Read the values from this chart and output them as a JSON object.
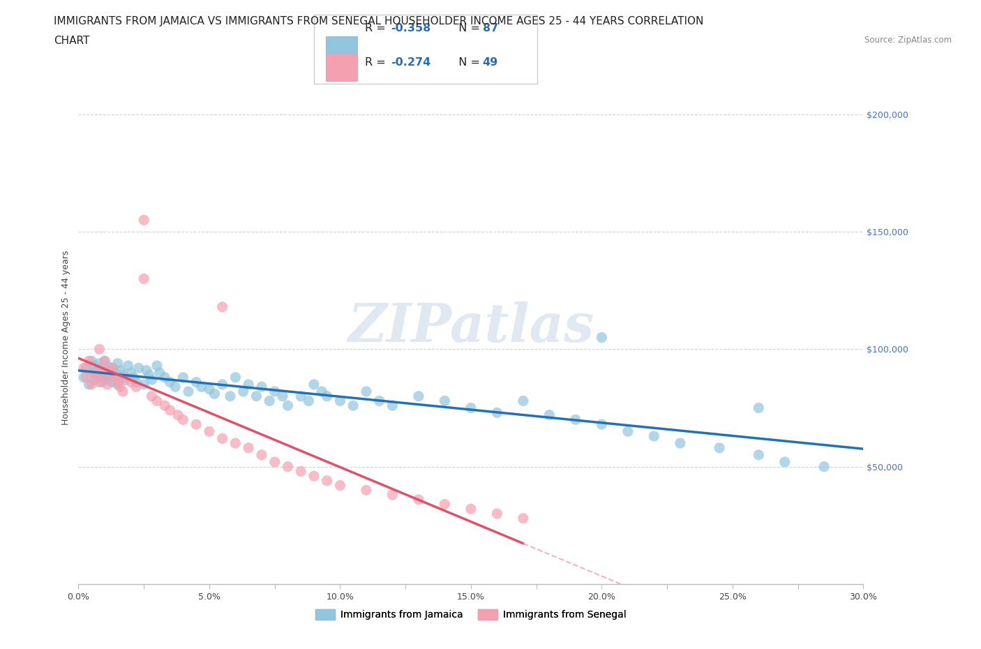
{
  "title_line1": "IMMIGRANTS FROM JAMAICA VS IMMIGRANTS FROM SENEGAL HOUSEHOLDER INCOME AGES 25 - 44 YEARS CORRELATION",
  "title_line2": "CHART",
  "source_text": "Source: ZipAtlas.com",
  "ylabel": "Householder Income Ages 25 - 44 years",
  "xlim": [
    0.0,
    0.3
  ],
  "ylim": [
    0,
    210000
  ],
  "xtick_labels": [
    "0.0%",
    "",
    "5.0%",
    "",
    "10.0%",
    "",
    "15.0%",
    "",
    "20.0%",
    "",
    "25.0%",
    "",
    "30.0%"
  ],
  "xtick_values": [
    0.0,
    0.025,
    0.05,
    0.075,
    0.1,
    0.125,
    0.15,
    0.175,
    0.2,
    0.225,
    0.25,
    0.275,
    0.3
  ],
  "ytick_labels": [
    "$50,000",
    "$100,000",
    "$150,000",
    "$200,000"
  ],
  "ytick_values": [
    50000,
    100000,
    150000,
    200000
  ],
  "jamaica_color": "#92C5DE",
  "senegal_color": "#F4A0B0",
  "jamaica_line_color": "#2171b5",
  "senegal_line_solid_color": "#e0506a",
  "senegal_line_dash_color": "#f4a0b0",
  "jamaica_R": -0.358,
  "jamaica_N": 87,
  "senegal_R": -0.274,
  "senegal_N": 49,
  "jamaica_scatter_x": [
    0.002,
    0.003,
    0.004,
    0.005,
    0.005,
    0.006,
    0.006,
    0.007,
    0.007,
    0.008,
    0.008,
    0.009,
    0.009,
    0.01,
    0.01,
    0.01,
    0.011,
    0.011,
    0.012,
    0.012,
    0.013,
    0.013,
    0.014,
    0.014,
    0.015,
    0.015,
    0.016,
    0.017,
    0.018,
    0.019,
    0.02,
    0.021,
    0.022,
    0.023,
    0.025,
    0.026,
    0.027,
    0.028,
    0.03,
    0.031,
    0.033,
    0.035,
    0.037,
    0.04,
    0.042,
    0.045,
    0.047,
    0.05,
    0.052,
    0.055,
    0.058,
    0.06,
    0.063,
    0.065,
    0.068,
    0.07,
    0.073,
    0.075,
    0.078,
    0.08,
    0.085,
    0.088,
    0.09,
    0.093,
    0.095,
    0.1,
    0.105,
    0.11,
    0.115,
    0.12,
    0.13,
    0.14,
    0.15,
    0.16,
    0.17,
    0.18,
    0.19,
    0.2,
    0.21,
    0.22,
    0.23,
    0.245,
    0.26,
    0.27,
    0.285,
    0.26,
    0.2
  ],
  "jamaica_scatter_y": [
    88000,
    92000,
    85000,
    95000,
    90000,
    87000,
    93000,
    89000,
    91000,
    88000,
    94000,
    86000,
    92000,
    90000,
    88000,
    95000,
    87000,
    93000,
    89000,
    91000,
    92000,
    86000,
    90000,
    88000,
    94000,
    85000,
    91000,
    89000,
    87000,
    93000,
    90000,
    88000,
    86000,
    92000,
    85000,
    91000,
    89000,
    87000,
    93000,
    90000,
    88000,
    86000,
    84000,
    88000,
    82000,
    86000,
    84000,
    83000,
    81000,
    85000,
    80000,
    88000,
    82000,
    85000,
    80000,
    84000,
    78000,
    82000,
    80000,
    76000,
    80000,
    78000,
    85000,
    82000,
    80000,
    78000,
    76000,
    82000,
    78000,
    76000,
    80000,
    78000,
    75000,
    73000,
    78000,
    72000,
    70000,
    68000,
    65000,
    63000,
    60000,
    58000,
    55000,
    52000,
    50000,
    75000,
    105000
  ],
  "senegal_scatter_x": [
    0.002,
    0.003,
    0.004,
    0.005,
    0.006,
    0.007,
    0.008,
    0.009,
    0.01,
    0.011,
    0.012,
    0.013,
    0.014,
    0.015,
    0.016,
    0.017,
    0.018,
    0.02,
    0.022,
    0.025,
    0.028,
    0.03,
    0.033,
    0.035,
    0.038,
    0.04,
    0.045,
    0.05,
    0.055,
    0.06,
    0.065,
    0.07,
    0.075,
    0.08,
    0.085,
    0.09,
    0.095,
    0.1,
    0.11,
    0.12,
    0.13,
    0.14,
    0.15,
    0.16,
    0.17,
    0.055,
    0.025,
    0.01,
    0.008
  ],
  "senegal_scatter_y": [
    92000,
    88000,
    95000,
    85000,
    90000,
    88000,
    86000,
    92000,
    88000,
    85000,
    90000,
    92000,
    88000,
    86000,
    84000,
    82000,
    88000,
    86000,
    84000,
    155000,
    80000,
    78000,
    76000,
    74000,
    72000,
    70000,
    68000,
    65000,
    62000,
    60000,
    58000,
    55000,
    52000,
    50000,
    48000,
    46000,
    44000,
    42000,
    40000,
    38000,
    36000,
    34000,
    32000,
    30000,
    28000,
    118000,
    130000,
    95000,
    100000
  ],
  "background_color": "#ffffff",
  "grid_color": "#cccccc",
  "watermark_text": "ZIPatlas",
  "watermark_color": "#c8d8e8",
  "title_fontsize": 11,
  "axis_label_fontsize": 9,
  "tick_fontsize": 9,
  "legend_fontsize": 11,
  "legend_label1": "R = -0.358  N = 87",
  "legend_label2": "R = -0.274  N = 49",
  "bottom_legend_label1": "Immigrants from Jamaica",
  "bottom_legend_label2": "Immigrants from Senegal"
}
